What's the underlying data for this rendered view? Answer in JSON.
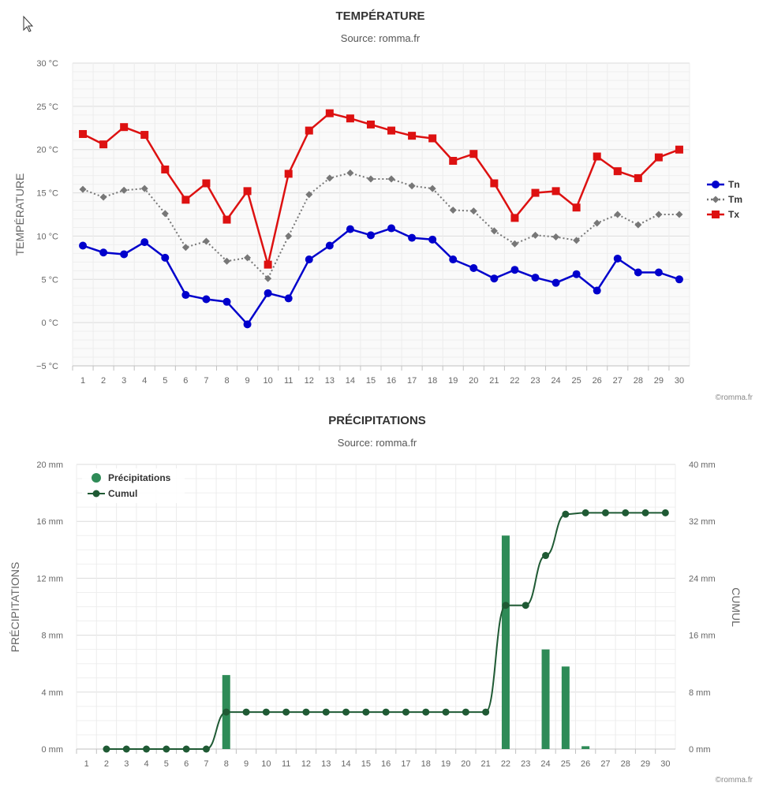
{
  "chart_data": [
    {
      "type": "line",
      "title": "TEMPÉRATURE",
      "subtitle": "Source: romma.fr",
      "credit": "©romma.fr",
      "ylabel": "TEMPÉRATURE",
      "ylim": [
        -5,
        30
      ],
      "yticks": [
        -5,
        0,
        5,
        10,
        15,
        20,
        25,
        30
      ],
      "y_unit": "°C",
      "categories": [
        1,
        2,
        3,
        4,
        5,
        6,
        7,
        8,
        9,
        10,
        11,
        12,
        13,
        14,
        15,
        16,
        17,
        18,
        19,
        20,
        21,
        22,
        23,
        24,
        25,
        26,
        27,
        28,
        29,
        30
      ],
      "grid": true,
      "legend_position": "right",
      "series": [
        {
          "name": "Tn",
          "color": "#0000cc",
          "marker": "circle",
          "dash": "solid",
          "values": [
            8.9,
            8.1,
            7.9,
            9.3,
            7.5,
            3.2,
            2.7,
            2.4,
            -0.2,
            3.4,
            2.8,
            7.3,
            8.9,
            10.8,
            10.1,
            10.9,
            9.8,
            9.6,
            7.3,
            6.3,
            5.1,
            6.1,
            5.2,
            4.6,
            5.6,
            3.7,
            7.4,
            5.8,
            5.8,
            5.0
          ]
        },
        {
          "name": "Tm",
          "color": "#777777",
          "marker": "diamond",
          "dash": "dotted",
          "values": [
            15.4,
            14.5,
            15.3,
            15.5,
            12.6,
            8.7,
            9.4,
            7.1,
            7.5,
            5.1,
            10.0,
            14.8,
            16.7,
            17.3,
            16.6,
            16.6,
            15.8,
            15.5,
            13.0,
            12.9,
            10.6,
            9.1,
            10.1,
            9.9,
            9.5,
            11.5,
            12.5,
            11.3,
            12.5,
            12.5
          ]
        },
        {
          "name": "Tx",
          "color": "#dd1111",
          "marker": "square",
          "dash": "solid",
          "values": [
            21.8,
            20.6,
            22.6,
            21.7,
            17.7,
            14.2,
            16.1,
            11.9,
            15.2,
            6.7,
            17.2,
            22.2,
            24.2,
            23.6,
            22.9,
            22.2,
            21.6,
            21.3,
            18.7,
            19.5,
            16.1,
            12.1,
            15.0,
            15.2,
            13.3,
            19.2,
            17.5,
            16.7,
            19.1,
            20.0
          ]
        }
      ]
    },
    {
      "type": "bar",
      "title": "PRÉCIPITATIONS",
      "subtitle": "Source: romma.fr",
      "credit": "©romma.fr",
      "ylabel": "PRÉCIPITATIONS",
      "ylabel_right": "CUMUL",
      "ylim": [
        0,
        20
      ],
      "ylim_right": [
        0,
        40
      ],
      "yticks": [
        0,
        4,
        8,
        12,
        16,
        20
      ],
      "yticks_right": [
        0,
        8,
        16,
        24,
        32,
        40
      ],
      "y_unit": "mm",
      "categories": [
        1,
        2,
        3,
        4,
        5,
        6,
        7,
        8,
        9,
        10,
        11,
        12,
        13,
        14,
        15,
        16,
        17,
        18,
        19,
        20,
        21,
        22,
        23,
        24,
        25,
        26,
        27,
        28,
        29,
        30
      ],
      "grid": true,
      "legend_position": "top-left",
      "series": [
        {
          "name": "Précipitations",
          "type": "bar",
          "axis": "left",
          "color": "#2e8b57",
          "values": [
            null,
            0,
            0,
            0,
            0,
            0,
            0,
            5.2,
            0,
            0,
            0,
            0,
            0,
            0,
            0,
            0,
            0,
            0,
            0,
            0,
            0,
            15.0,
            0,
            7.0,
            5.8,
            0.2,
            0,
            0,
            0,
            0
          ]
        },
        {
          "name": "Cumul",
          "type": "line",
          "axis": "right",
          "color": "#1f5a34",
          "values": [
            null,
            0,
            0,
            0,
            0,
            0,
            0,
            5.2,
            5.2,
            5.2,
            5.2,
            5.2,
            5.2,
            5.2,
            5.2,
            5.2,
            5.2,
            5.2,
            5.2,
            5.2,
            5.2,
            20.2,
            20.2,
            27.2,
            33.0,
            33.2,
            33.2,
            33.2,
            33.2,
            33.2
          ]
        }
      ]
    }
  ]
}
